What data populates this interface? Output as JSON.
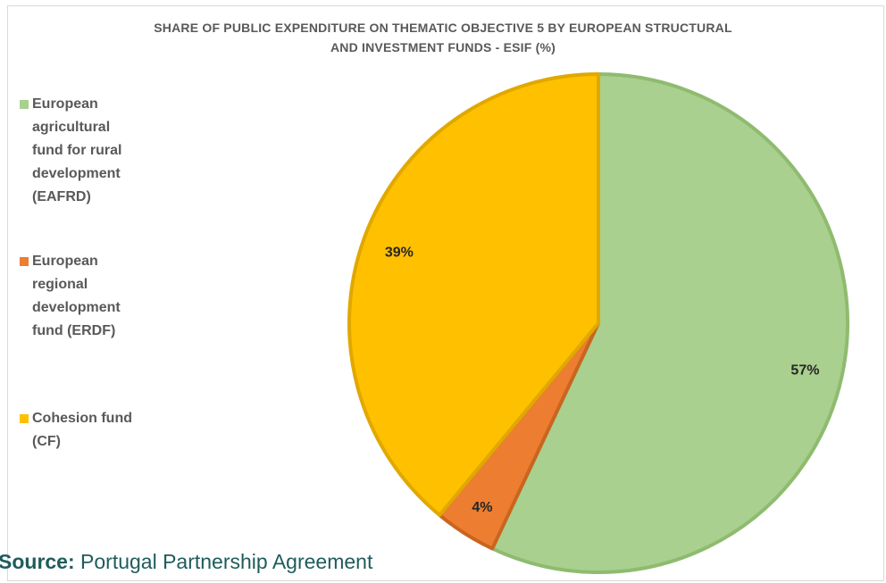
{
  "chart_data": {
    "type": "pie",
    "title_lines": [
      "SHARE OF PUBLIC EXPENDITURE ON THEMATIC OBJECTIVE 5 BY EUROPEAN STRUCTURAL",
      "AND INVESTMENT FUNDS - ESIF (%)"
    ],
    "slices": [
      {
        "name": "European agricultural fund for rural development (EAFRD)",
        "value": 57,
        "label": "57%",
        "color": "#a9d08e",
        "stroke": "#8fbb6f"
      },
      {
        "name": "European regional development fund (ERDF)",
        "value": 4,
        "label": "4%",
        "color": "#ed7d31",
        "stroke": "#c9651f"
      },
      {
        "name": "Cohesion fund (CF)",
        "value": 39,
        "label": "39%",
        "color": "#ffc000",
        "stroke": "#e0a800"
      }
    ],
    "legend_lines": [
      [
        "European",
        "agricultural",
        "fund for rural",
        "development",
        "(EAFRD)"
      ],
      [
        "European",
        "regional",
        "development",
        "fund (ERDF)"
      ],
      [
        "Cohesion fund",
        "(CF)"
      ]
    ],
    "legend_position": "left"
  },
  "source": {
    "label": "Source:",
    "text": " Portugal Partnership Agreement"
  }
}
